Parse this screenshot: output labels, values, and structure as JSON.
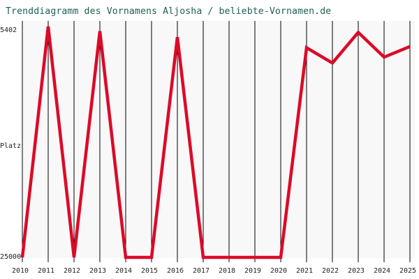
{
  "chart_data": {
    "type": "line",
    "title": "Trenddiagramm des Vornamens Aljosha / beliebte-Vornamen.de",
    "xlabel": "",
    "ylabel": "Platz",
    "y_axis_inverted": true,
    "ylim": [
      25000,
      5402
    ],
    "y_tick_labels": [
      "5402",
      "25000"
    ],
    "grid": true,
    "x": [
      "2010",
      "2011",
      "2012",
      "2013",
      "2014",
      "2015",
      "2016",
      "2017",
      "2018",
      "2019",
      "2020",
      "2021",
      "2022",
      "2023",
      "2024",
      "2025"
    ],
    "series": [
      {
        "values": [
          25000,
          5402,
          25000,
          5800,
          25000,
          25000,
          6300,
          25000,
          25000,
          25000,
          25000,
          7200,
          8500,
          5900,
          8000,
          7100
        ]
      }
    ],
    "colors": {
      "line": "#dc0a28",
      "grid": "#000000",
      "plot_background": "#f8f8f8"
    }
  }
}
